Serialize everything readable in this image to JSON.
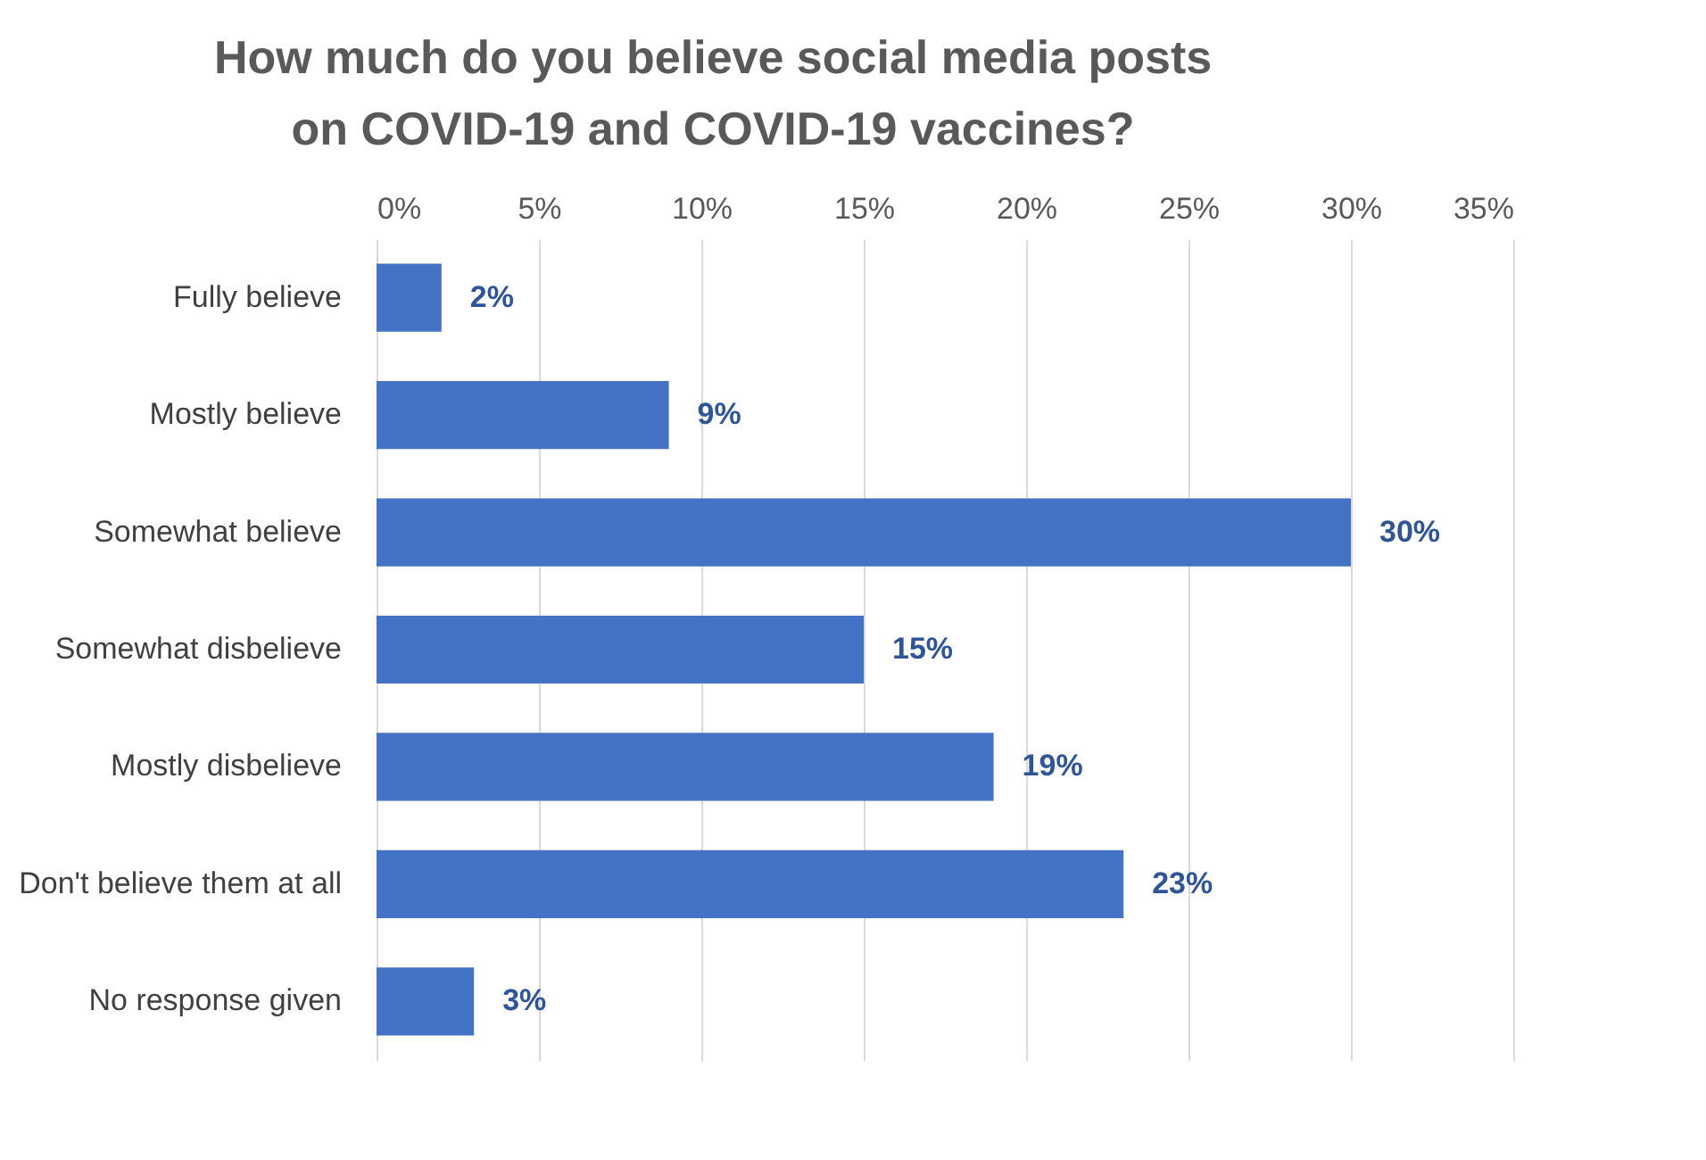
{
  "chart_data": {
    "type": "bar",
    "orientation": "horizontal",
    "title": "How much do you believe social media posts on COVID-19 and COVID-19 vaccines?",
    "categories": [
      "Fully believe",
      "Mostly believe",
      "Somewhat believe",
      "Somewhat disbelieve",
      "Mostly disbelieve",
      "Don't believe them at all",
      "No response given"
    ],
    "values": [
      2,
      9,
      30,
      15,
      19,
      23,
      3
    ],
    "value_labels": [
      "2%",
      "9%",
      "30%",
      "15%",
      "19%",
      "23%",
      "3%"
    ],
    "color": "#4472c4",
    "xlim": [
      0,
      35
    ],
    "xticks": [
      {
        "value": 0,
        "label": "0%"
      },
      {
        "value": 5,
        "label": "5%"
      },
      {
        "value": 10,
        "label": "10%"
      },
      {
        "value": 15,
        "label": "15%"
      },
      {
        "value": 20,
        "label": "20%"
      },
      {
        "value": 25,
        "label": "25%"
      },
      {
        "value": 30,
        "label": "30%"
      },
      {
        "value": 35,
        "label": "35%"
      }
    ],
    "grid": "x"
  }
}
